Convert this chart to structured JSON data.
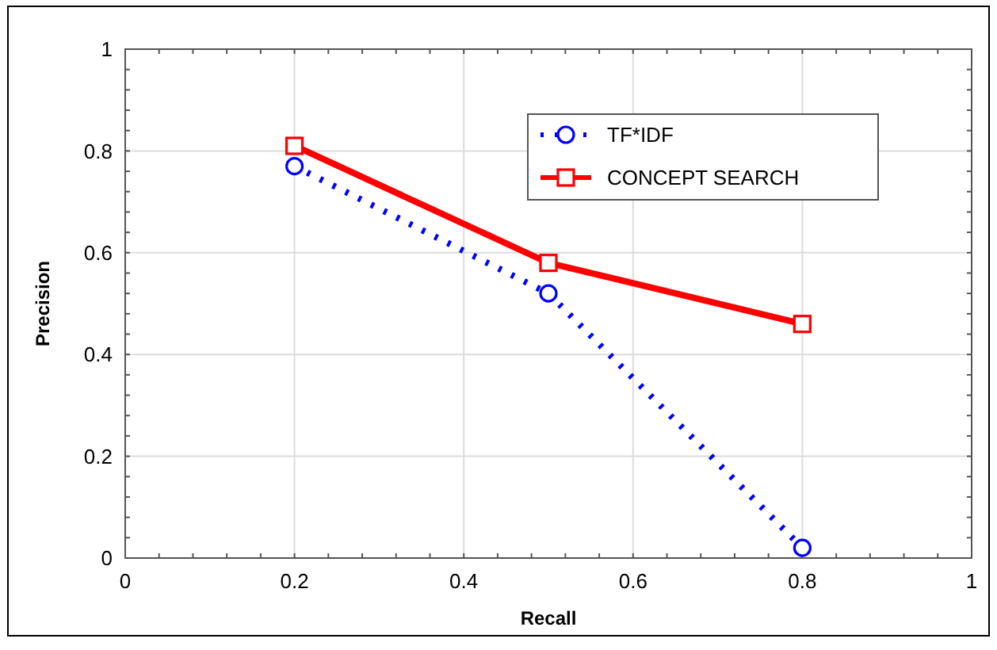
{
  "chart_data": {
    "type": "line",
    "xlabel": "Recall",
    "ylabel": "Precision",
    "x": [
      0.2,
      0.5,
      0.8
    ],
    "series": [
      {
        "name": "TF*IDF",
        "color": "#0000ff",
        "values": [
          0.77,
          0.52,
          0.02
        ],
        "marker": "circle",
        "line_style": "dotted"
      },
      {
        "name": "CONCEPT SEARCH",
        "color": "#ff0000",
        "values": [
          0.81,
          0.58,
          0.46
        ],
        "marker": "square",
        "line_style": "solid"
      }
    ],
    "xlim": [
      0,
      1
    ],
    "ylim": [
      0,
      1
    ],
    "xticks": [
      0,
      0.2,
      0.4,
      0.6,
      0.8,
      1
    ],
    "yticks": [
      0,
      0.2,
      0.4,
      0.6,
      0.8,
      1
    ],
    "grid": true,
    "legend": "top right"
  }
}
